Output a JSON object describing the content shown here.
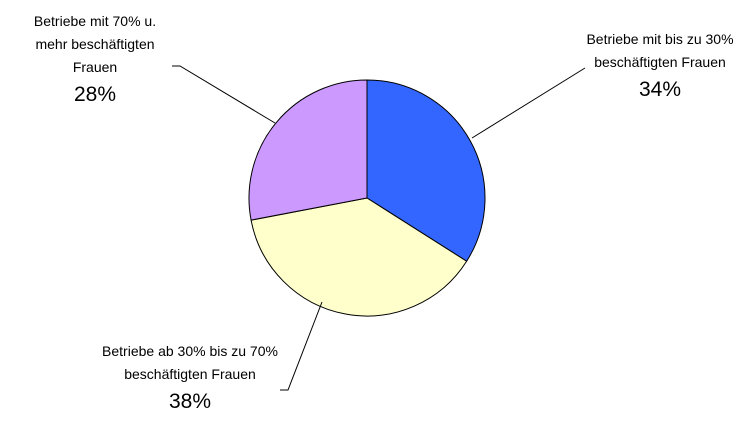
{
  "chart_data": {
    "type": "pie",
    "categories": [
      "Betriebe mit bis zu 30% beschäftigten Frauen",
      "Betriebe ab 30% bis zu 70% beschäftigten Frauen",
      "Betriebe mit 70% u. mehr beschäftigten Frauen"
    ],
    "values": [
      34,
      38,
      28
    ],
    "value_labels": [
      "34%",
      "38%",
      "28%"
    ],
    "colors": [
      "#3366ff",
      "#ffffcc",
      "#cc99ff"
    ]
  }
}
